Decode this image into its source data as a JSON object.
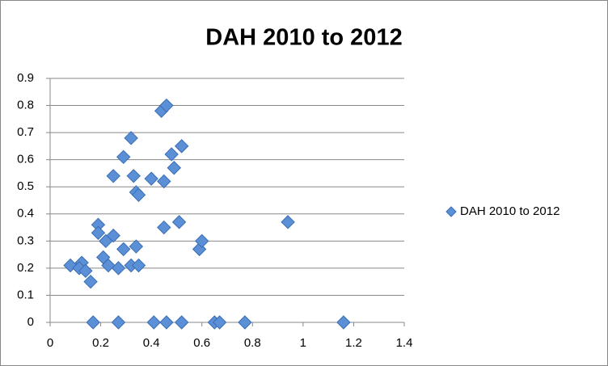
{
  "chart_data": {
    "type": "scatter",
    "title": "DAH 2010 to 2012",
    "series": [
      {
        "name": "DAH 2010 to 2012",
        "color": "#5b8fd6",
        "x": [
          0.08,
          0.125,
          0.115,
          0.14,
          0.16,
          0.19,
          0.19,
          0.21,
          0.22,
          0.23,
          0.25,
          0.25,
          0.27,
          0.29,
          0.29,
          0.32,
          0.32,
          0.33,
          0.34,
          0.34,
          0.35,
          0.35,
          0.4,
          0.44,
          0.46,
          0.45,
          0.45,
          0.48,
          0.49,
          0.51,
          0.52,
          0.59,
          0.6,
          0.94,
          0.17,
          0.27,
          0.41,
          0.46,
          0.52,
          0.65,
          0.67,
          0.77,
          1.16
        ],
        "values": [
          0.21,
          0.22,
          0.2,
          0.19,
          0.15,
          0.36,
          0.33,
          0.24,
          0.3,
          0.21,
          0.32,
          0.54,
          0.2,
          0.61,
          0.27,
          0.68,
          0.21,
          0.54,
          0.28,
          0.48,
          0.47,
          0.21,
          0.53,
          0.78,
          0.8,
          0.52,
          0.35,
          0.62,
          0.57,
          0.37,
          0.65,
          0.27,
          0.3,
          0.37,
          0,
          0,
          0,
          0,
          0,
          0,
          0,
          0,
          0
        ]
      }
    ],
    "xlim": [
      0,
      1.4
    ],
    "xticks": [
      0,
      0.2,
      0.4,
      0.6,
      0.8,
      1,
      1.2,
      1.4
    ],
    "ylim": [
      0,
      0.9
    ],
    "yticks": [
      0,
      0.1,
      0.2,
      0.3,
      0.4,
      0.5,
      0.6,
      0.7,
      0.8,
      0.9
    ],
    "grid": true,
    "legend": "right"
  }
}
